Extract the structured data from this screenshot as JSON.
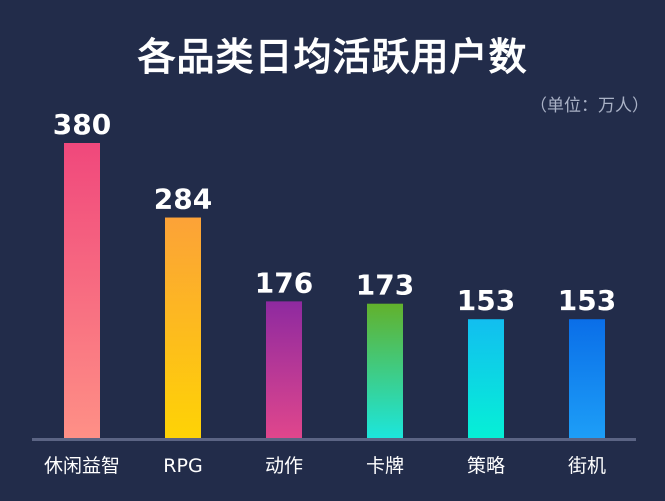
{
  "chart_data": {
    "type": "bar",
    "title": "各品类日均活跃用户数",
    "unit_note": "（单位：万人）",
    "categories": [
      "休闲益智",
      "RPG",
      "动作",
      "卡牌",
      "策略",
      "街机"
    ],
    "values": [
      380,
      284,
      176,
      173,
      153,
      153
    ],
    "ylim": [
      0,
      400
    ],
    "xlabel": "",
    "ylabel": "",
    "grid": false,
    "legend": "none",
    "bar_gradients": [
      [
        "#f0487c",
        "#fe9086"
      ],
      [
        "#fca238",
        "#fed305"
      ],
      [
        "#8e2aa0",
        "#e0468c"
      ],
      [
        "#62b12c",
        "#1ce6dc"
      ],
      [
        "#12bef0",
        "#06f0d6"
      ],
      [
        "#0a6ee8",
        "#1d9ef7"
      ]
    ],
    "axis_color": "#5b6484",
    "background": "#222c4a"
  }
}
